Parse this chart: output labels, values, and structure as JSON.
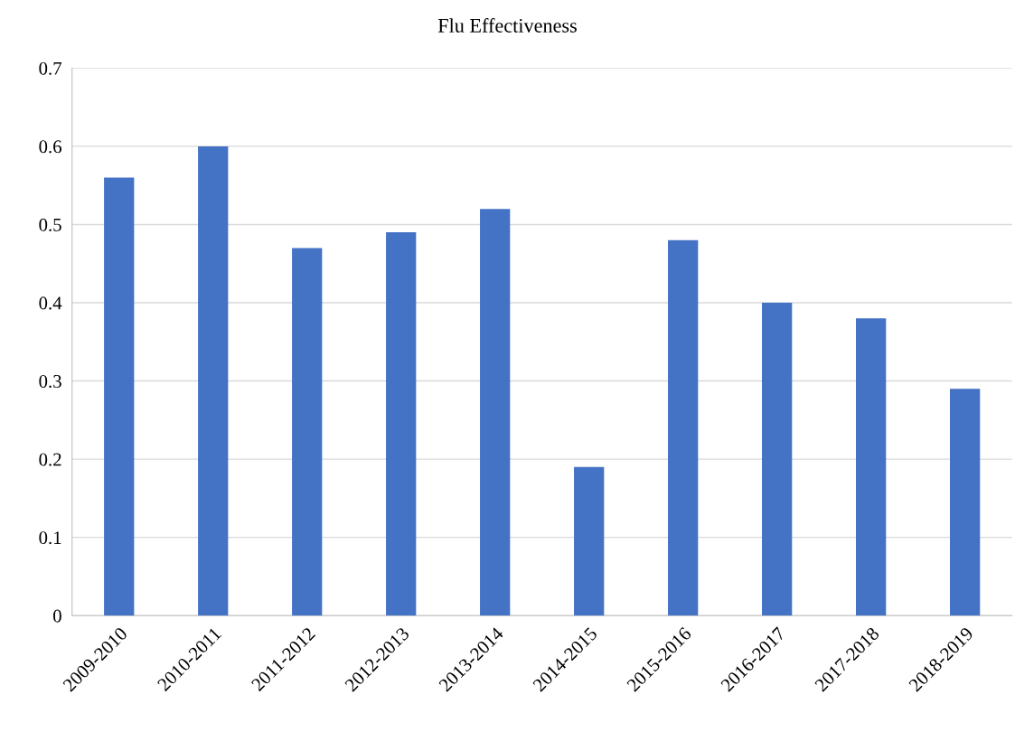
{
  "chart_data": {
    "type": "bar",
    "title": "Flu Effectiveness",
    "categories": [
      "2009-2010",
      "2010-2011",
      "2011-2012",
      "2012-2013",
      "2013-2014",
      "2014-2015",
      "2015-2016",
      "2016-2017",
      "2017-2018",
      "2018-2019"
    ],
    "values": [
      0.56,
      0.6,
      0.47,
      0.49,
      0.52,
      0.19,
      0.48,
      0.4,
      0.38,
      0.29
    ],
    "color": "#4472c4",
    "ylim": [
      0,
      0.7
    ],
    "yticks": [
      {
        "value": 0,
        "label": "0"
      },
      0.1,
      0.2,
      0.3,
      0.4,
      0.5,
      0.6,
      0.7
    ],
    "grid": "y",
    "legend": false
  }
}
